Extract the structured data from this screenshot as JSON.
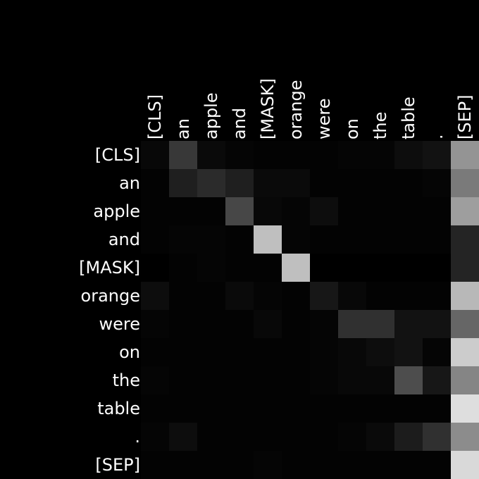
{
  "chart_data": {
    "type": "heatmap",
    "title": "",
    "xlabel": "",
    "ylabel": "",
    "x_labels": [
      "[CLS]",
      "an",
      "apple",
      "and",
      "[MASK]",
      "orange",
      "were",
      "on",
      "the",
      "table",
      ".",
      "[SEP]"
    ],
    "y_labels": [
      "[CLS]",
      "an",
      "apple",
      "and",
      "[MASK]",
      "orange",
      "were",
      "on",
      "the",
      "table",
      ".",
      "[SEP]"
    ],
    "colormap": "gray",
    "value_range": [
      0,
      1
    ],
    "values": [
      [
        0.03,
        0.22,
        0.04,
        0.02,
        0.01,
        0.01,
        0.01,
        0.02,
        0.02,
        0.05,
        0.07,
        0.58
      ],
      [
        0.01,
        0.12,
        0.17,
        0.12,
        0.04,
        0.04,
        0.01,
        0.01,
        0.01,
        0.01,
        0.02,
        0.48
      ],
      [
        0.01,
        0.01,
        0.01,
        0.28,
        0.03,
        0.02,
        0.05,
        0.01,
        0.01,
        0.01,
        0.01,
        0.62
      ],
      [
        0.01,
        0.02,
        0.02,
        0.01,
        0.75,
        0.02,
        0.01,
        0.01,
        0.01,
        0.01,
        0.01,
        0.14
      ],
      [
        0.0,
        0.01,
        0.02,
        0.01,
        0.01,
        0.75,
        0.0,
        0.0,
        0.0,
        0.0,
        0.0,
        0.14
      ],
      [
        0.05,
        0.01,
        0.01,
        0.04,
        0.02,
        0.01,
        0.09,
        0.03,
        0.01,
        0.01,
        0.01,
        0.72
      ],
      [
        0.02,
        0.01,
        0.01,
        0.01,
        0.03,
        0.01,
        0.02,
        0.19,
        0.19,
        0.07,
        0.07,
        0.4
      ],
      [
        0.01,
        0.01,
        0.01,
        0.01,
        0.01,
        0.01,
        0.02,
        0.03,
        0.05,
        0.07,
        0.02,
        0.8
      ],
      [
        0.02,
        0.01,
        0.01,
        0.01,
        0.01,
        0.01,
        0.02,
        0.03,
        0.03,
        0.3,
        0.09,
        0.52
      ],
      [
        0.01,
        0.01,
        0.01,
        0.01,
        0.01,
        0.01,
        0.01,
        0.01,
        0.01,
        0.01,
        0.01,
        0.87
      ],
      [
        0.02,
        0.05,
        0.01,
        0.01,
        0.01,
        0.01,
        0.01,
        0.02,
        0.04,
        0.11,
        0.19,
        0.55
      ],
      [
        0.01,
        0.01,
        0.01,
        0.01,
        0.02,
        0.01,
        0.01,
        0.01,
        0.01,
        0.01,
        0.01,
        0.85
      ]
    ]
  }
}
